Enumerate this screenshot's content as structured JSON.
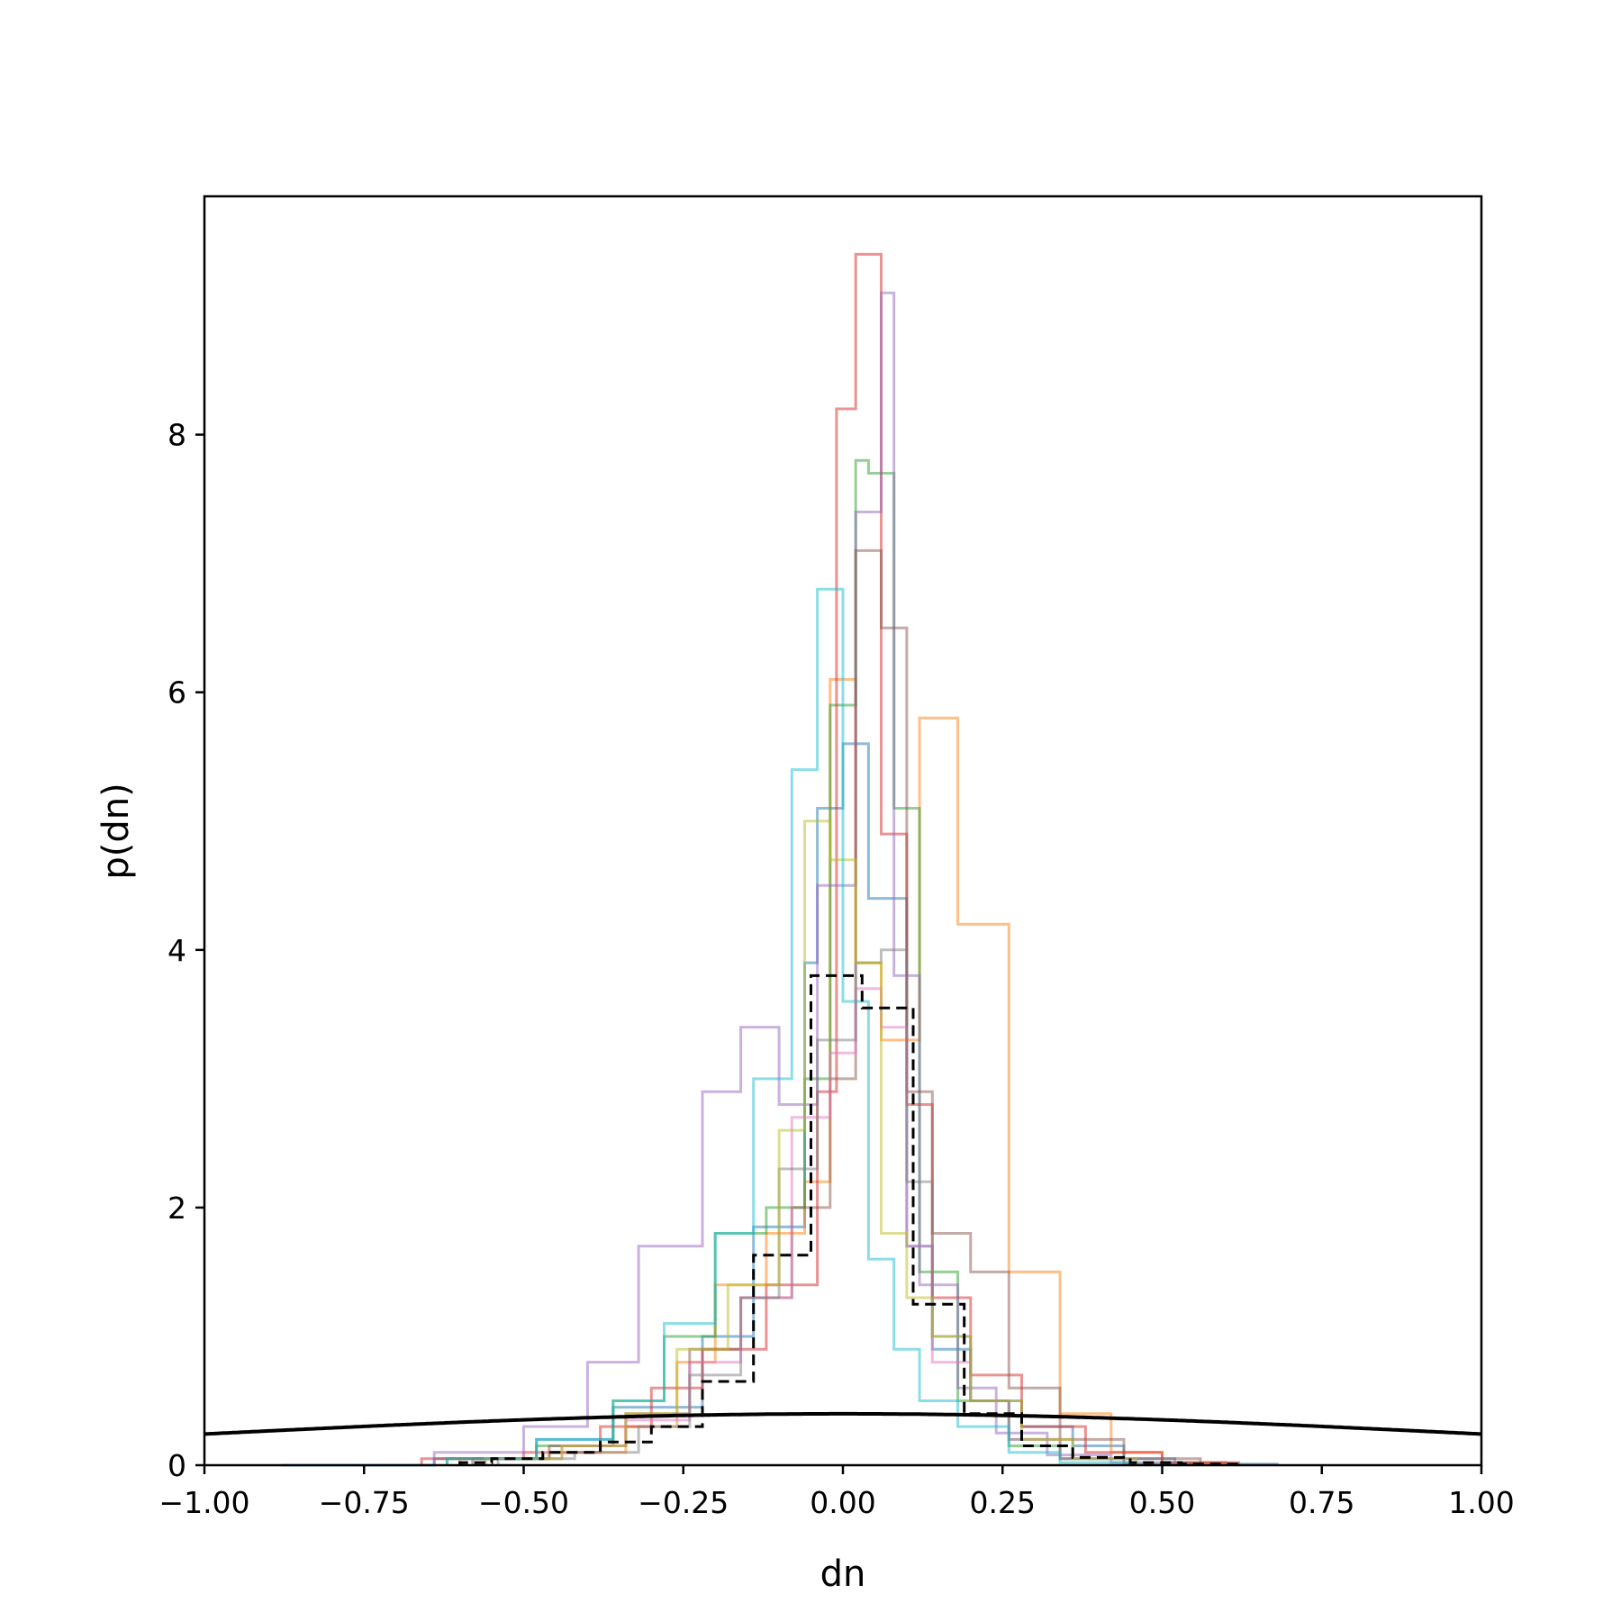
{
  "chart_data": {
    "type": "histogram",
    "title": "",
    "xlabel": "dn",
    "ylabel": "p(dn)",
    "xlim": [
      -1.0,
      1.0
    ],
    "ylim": [
      0,
      9.85
    ],
    "grid": false,
    "x_ticks": [
      -1.0,
      -0.75,
      -0.5,
      -0.25,
      0.0,
      0.25,
      0.5,
      0.75,
      1.0
    ],
    "x_tick_labels": [
      "−1.00",
      "−0.75",
      "−0.50",
      "−0.25",
      "0.00",
      "0.25",
      "0.50",
      "0.75",
      "1.00"
    ],
    "y_ticks": [
      0,
      2,
      4,
      6,
      8
    ],
    "y_tick_labels": [
      "0",
      "2",
      "4",
      "6",
      "8"
    ],
    "histograms": [
      {
        "color": "#1f77b4",
        "edges": [
          -0.88,
          -0.64,
          -0.48,
          -0.36,
          -0.22,
          -0.14,
          -0.06,
          -0.04,
          0.0,
          0.04,
          0.1,
          0.14,
          0.2,
          0.28,
          0.36,
          0.44,
          0.52,
          0.6,
          0.68
        ],
        "values": [
          0.0,
          0.05,
          0.2,
          0.45,
          1.0,
          1.85,
          3.9,
          5.1,
          5.6,
          4.4,
          1.7,
          0.9,
          0.5,
          0.3,
          0.15,
          0.05,
          0.02,
          0.01
        ]
      },
      {
        "color": "#ff7f0e",
        "edges": [
          -0.6,
          -0.46,
          -0.34,
          -0.26,
          -0.2,
          -0.12,
          -0.06,
          -0.02,
          0.02,
          0.06,
          0.12,
          0.18,
          0.26,
          0.34,
          0.42,
          0.5,
          0.6
        ],
        "values": [
          0.05,
          0.1,
          0.3,
          0.8,
          1.4,
          1.8,
          2.2,
          6.1,
          3.9,
          3.3,
          5.8,
          4.2,
          1.5,
          0.4,
          0.1,
          0.02
        ]
      },
      {
        "color": "#2ca02c",
        "edges": [
          -0.62,
          -0.48,
          -0.36,
          -0.28,
          -0.2,
          -0.12,
          -0.06,
          -0.02,
          0.02,
          0.04,
          0.08,
          0.12,
          0.18,
          0.26,
          0.34,
          0.44,
          0.56
        ],
        "values": [
          0.05,
          0.15,
          0.5,
          1.0,
          1.8,
          2.0,
          3.0,
          5.9,
          7.8,
          7.7,
          5.1,
          1.5,
          0.5,
          0.15,
          0.05,
          0.01
        ]
      },
      {
        "color": "#d62728",
        "edges": [
          -0.66,
          -0.5,
          -0.38,
          -0.3,
          -0.22,
          -0.12,
          -0.04,
          -0.01,
          0.02,
          0.06,
          0.1,
          0.14,
          0.2,
          0.28,
          0.38,
          0.5,
          0.62
        ],
        "values": [
          0.05,
          0.1,
          0.3,
          0.6,
          0.9,
          1.4,
          2.9,
          8.2,
          9.4,
          4.9,
          2.8,
          1.3,
          0.7,
          0.3,
          0.1,
          0.02
        ]
      },
      {
        "color": "#9467bd",
        "edges": [
          -0.64,
          -0.5,
          -0.4,
          -0.32,
          -0.22,
          -0.16,
          -0.1,
          -0.04,
          0.02,
          0.06,
          0.08,
          0.12,
          0.18,
          0.24,
          0.32,
          0.42,
          0.54
        ],
        "values": [
          0.1,
          0.3,
          0.8,
          1.7,
          2.9,
          3.4,
          2.8,
          4.5,
          7.4,
          9.1,
          3.8,
          1.4,
          0.6,
          0.25,
          0.08,
          0.02
        ]
      },
      {
        "color": "#8c564b",
        "edges": [
          -0.58,
          -0.46,
          -0.34,
          -0.24,
          -0.16,
          -0.08,
          -0.02,
          0.02,
          0.06,
          0.1,
          0.14,
          0.2,
          0.26,
          0.34,
          0.44,
          0.56
        ],
        "values": [
          0.05,
          0.15,
          0.4,
          0.9,
          1.3,
          2.0,
          3.0,
          7.1,
          6.5,
          2.9,
          1.8,
          1.5,
          0.6,
          0.2,
          0.05
        ]
      },
      {
        "color": "#e377c2",
        "edges": [
          -0.56,
          -0.44,
          -0.34,
          -0.24,
          -0.16,
          -0.08,
          -0.02,
          0.02,
          0.06,
          0.1,
          0.14,
          0.2,
          0.26,
          0.34,
          0.44
        ],
        "values": [
          0.05,
          0.15,
          0.35,
          0.8,
          1.3,
          2.7,
          3.2,
          3.7,
          3.4,
          1.7,
          0.8,
          0.5,
          0.2,
          0.05
        ]
      },
      {
        "color": "#7f7f7f",
        "edges": [
          -0.54,
          -0.42,
          -0.32,
          -0.24,
          -0.16,
          -0.1,
          -0.04,
          0.02,
          0.06,
          0.1,
          0.14,
          0.2,
          0.26,
          0.34,
          0.44
        ],
        "values": [
          0.05,
          0.1,
          0.3,
          0.7,
          1.3,
          2.3,
          3.3,
          3.9,
          4.0,
          2.2,
          1.0,
          0.5,
          0.2,
          0.05
        ]
      },
      {
        "color": "#bcbd22",
        "edges": [
          -0.56,
          -0.44,
          -0.34,
          -0.26,
          -0.18,
          -0.1,
          -0.06,
          -0.02,
          0.02,
          0.06,
          0.1,
          0.14,
          0.2,
          0.28,
          0.36,
          0.46
        ],
        "values": [
          0.05,
          0.15,
          0.4,
          0.9,
          1.4,
          2.6,
          5.0,
          4.7,
          3.9,
          1.8,
          1.3,
          1.0,
          0.5,
          0.2,
          0.05
        ]
      },
      {
        "color": "#17becf",
        "edges": [
          -0.62,
          -0.48,
          -0.36,
          -0.28,
          -0.2,
          -0.14,
          -0.08,
          -0.04,
          0.0,
          0.04,
          0.08,
          0.12,
          0.18,
          0.26,
          0.34,
          0.46
        ],
        "values": [
          0.05,
          0.2,
          0.5,
          1.1,
          1.8,
          3.0,
          5.4,
          6.8,
          3.6,
          1.6,
          0.9,
          0.5,
          0.3,
          0.1,
          0.02
        ]
      }
    ],
    "pooled_histogram": {
      "color": "#000000",
      "style": "dashed",
      "edges": [
        -0.6,
        -0.55,
        -0.47,
        -0.38,
        -0.3,
        -0.22,
        -0.14,
        -0.05,
        0.03,
        0.11,
        0.19,
        0.28,
        0.36,
        0.45,
        0.53,
        0.62
      ],
      "values": [
        0.02,
        0.05,
        0.1,
        0.18,
        0.3,
        0.65,
        1.63,
        3.8,
        3.55,
        1.25,
        0.4,
        0.15,
        0.06,
        0.02,
        0.01
      ]
    },
    "reference_curve": {
      "color": "#000000",
      "description": "normal density",
      "mean": 0.0,
      "std": 1.0
    }
  }
}
